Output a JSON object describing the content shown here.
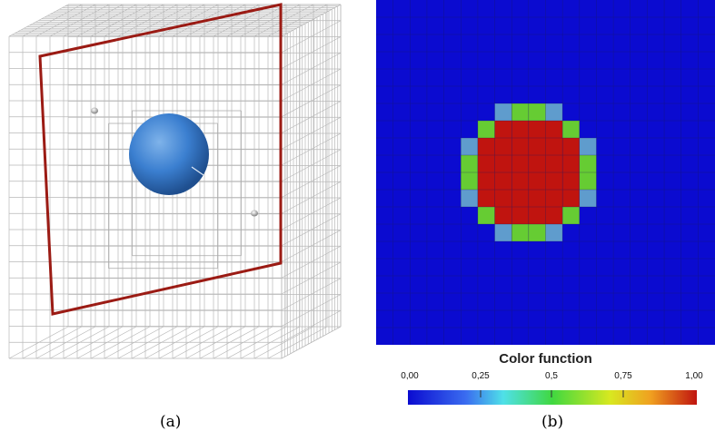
{
  "panel_a": {
    "caption": "(a)"
  },
  "panel_b": {
    "caption": "(b)",
    "colorbar": {
      "title": "Color function",
      "ticks": [
        "0,00",
        "0,25",
        "0,5",
        "0,75",
        "1,00"
      ],
      "tick_values": [
        0,
        0.25,
        0.5,
        0.75,
        1.0
      ]
    },
    "grid": {
      "n": 20,
      "cells": [
        [
          7,
          6,
          "0.4"
        ],
        [
          8,
          6,
          "0.6"
        ],
        [
          9,
          6,
          "0.6"
        ],
        [
          10,
          6,
          "0.4"
        ],
        [
          6,
          7,
          "0.6"
        ],
        [
          7,
          7,
          "1"
        ],
        [
          8,
          7,
          "1"
        ],
        [
          9,
          7,
          "1"
        ],
        [
          10,
          7,
          "1"
        ],
        [
          11,
          7,
          "0.6"
        ],
        [
          5,
          8,
          "0.4"
        ],
        [
          6,
          8,
          "1"
        ],
        [
          7,
          8,
          "1"
        ],
        [
          8,
          8,
          "1"
        ],
        [
          9,
          8,
          "1"
        ],
        [
          10,
          8,
          "1"
        ],
        [
          11,
          8,
          "1"
        ],
        [
          12,
          8,
          "0.4"
        ],
        [
          5,
          9,
          "0.6"
        ],
        [
          6,
          9,
          "1"
        ],
        [
          7,
          9,
          "1"
        ],
        [
          8,
          9,
          "1"
        ],
        [
          9,
          9,
          "1"
        ],
        [
          10,
          9,
          "1"
        ],
        [
          11,
          9,
          "1"
        ],
        [
          12,
          9,
          "0.6"
        ],
        [
          5,
          10,
          "0.6"
        ],
        [
          6,
          10,
          "1"
        ],
        [
          7,
          10,
          "1"
        ],
        [
          8,
          10,
          "1"
        ],
        [
          9,
          10,
          "1"
        ],
        [
          10,
          10,
          "1"
        ],
        [
          11,
          10,
          "1"
        ],
        [
          12,
          10,
          "0.6"
        ],
        [
          5,
          11,
          "0.4"
        ],
        [
          6,
          11,
          "1"
        ],
        [
          7,
          11,
          "1"
        ],
        [
          8,
          11,
          "1"
        ],
        [
          9,
          11,
          "1"
        ],
        [
          10,
          11,
          "1"
        ],
        [
          11,
          11,
          "1"
        ],
        [
          12,
          11,
          "0.4"
        ],
        [
          6,
          12,
          "0.6"
        ],
        [
          7,
          12,
          "1"
        ],
        [
          8,
          12,
          "1"
        ],
        [
          9,
          12,
          "1"
        ],
        [
          10,
          12,
          "1"
        ],
        [
          11,
          12,
          "0.6"
        ],
        [
          7,
          13,
          "0.4"
        ],
        [
          8,
          13,
          "0.6"
        ],
        [
          9,
          13,
          "0.6"
        ],
        [
          10,
          13,
          "0.4"
        ]
      ],
      "colors": {
        "0": "#0b0bd0",
        "0.4": "#5f9ccd",
        "0.6": "#66cc33",
        "1": "#c0140f"
      }
    }
  }
}
